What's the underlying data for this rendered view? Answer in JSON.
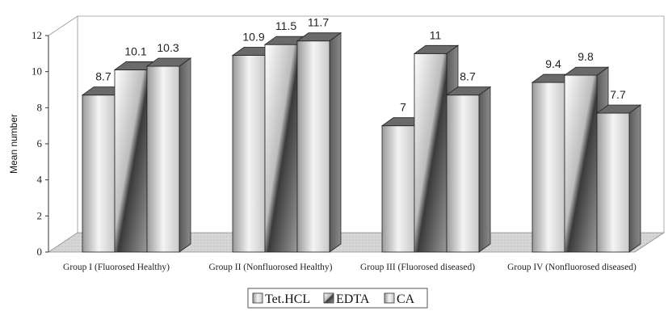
{
  "chart_data": {
    "type": "bar",
    "ylabel": "Mean number",
    "ylim": [
      0,
      12
    ],
    "yticks": [
      "0",
      "2",
      "4",
      "6",
      "8",
      "10",
      "12"
    ],
    "categories": [
      "Group I (Fluorosed Healthy)",
      "Group II (Nonfluorosed Healthy)",
      "Group III (Fluorosed diseased)",
      "Group IV (Nonfluorosed diseased)"
    ],
    "series": [
      {
        "name": "Tet.HCL",
        "values": [
          8.7,
          10.9,
          7,
          9.4
        ],
        "labels": [
          "8.7",
          "10.9",
          "7",
          "9.4"
        ]
      },
      {
        "name": "EDTA",
        "values": [
          10.1,
          11.5,
          11,
          9.8
        ],
        "labels": [
          "10.1",
          "11.5",
          "11",
          "9.8"
        ]
      },
      {
        "name": "CA",
        "values": [
          10.3,
          11.7,
          8.7,
          7.7
        ],
        "labels": [
          "10.3",
          "11.7",
          "8.7",
          "7.7"
        ]
      }
    ],
    "legend_position": "bottom",
    "grid": false,
    "style": "3d-grayscale"
  }
}
